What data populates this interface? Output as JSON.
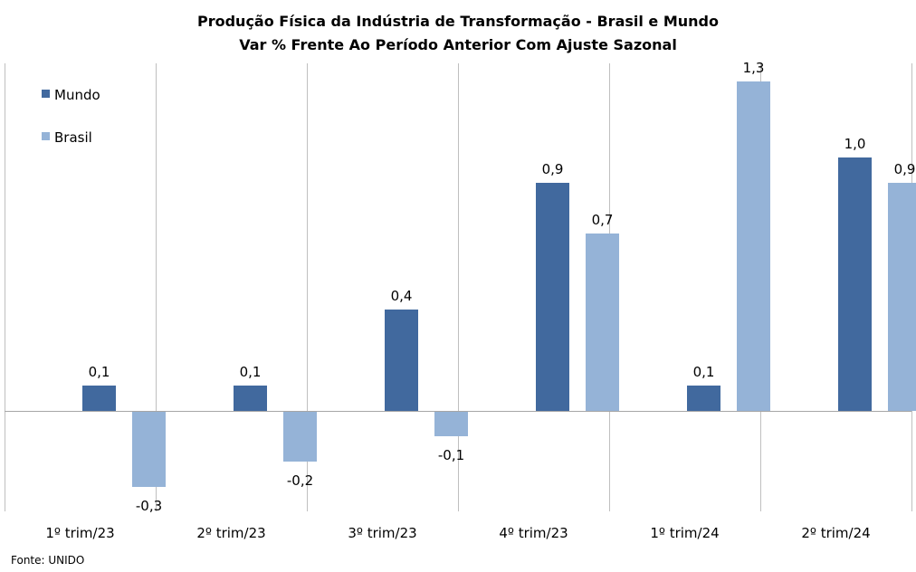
{
  "source": "Fonte: UNIDO",
  "chart_data": {
    "type": "bar",
    "title": "Produção Física da Indústria de Transformação - Brasil e Mundo",
    "subtitle": "Var % Frente Ao Período Anterior Com Ajuste Sazonal",
    "xlabel": "",
    "ylabel": "",
    "categories": [
      "1º trim/23",
      "2º trim/23",
      "3º trim/23",
      "4º trim/23",
      "1º trim/24",
      "2º trim/24"
    ],
    "series": [
      {
        "name": "Mundo",
        "color": "#41699E",
        "values": [
          0.1,
          0.1,
          0.4,
          0.9,
          0.1,
          1.0
        ],
        "labels": [
          "0,1",
          "0,1",
          "0,4",
          "0,9",
          "0,1",
          "1,0"
        ]
      },
      {
        "name": "Brasil",
        "color": "#95B3D7",
        "values": [
          -0.3,
          -0.2,
          -0.1,
          0.7,
          1.3,
          0.9
        ],
        "labels": [
          "-0,3",
          "-0,2",
          "-0,1",
          "0,7",
          "1,3",
          "0,9"
        ]
      }
    ],
    "ylim": [
      -0.35,
      1.4
    ],
    "grid": "vertical category separators",
    "legend": "top-left",
    "gridline_color": "#BFBFBF",
    "zero_line_color": "#A6A6A6"
  }
}
